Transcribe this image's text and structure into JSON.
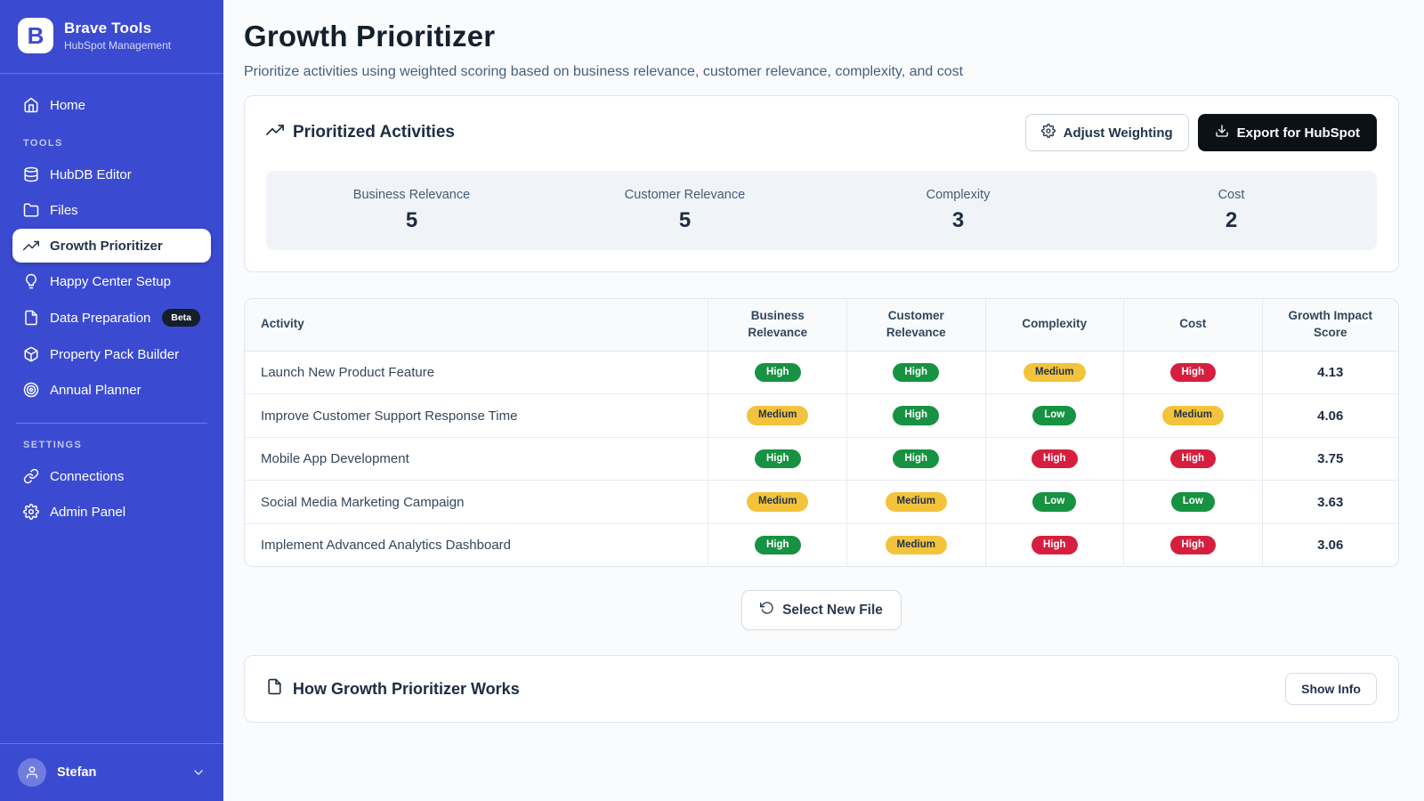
{
  "colors": {
    "sidebar-blue": "#3b4bd1",
    "badge-green": "#179242",
    "badge-yellow": "#f3c33c",
    "badge-red": "#d61f3e"
  },
  "sidebar": {
    "logo": {
      "monogram": "B",
      "title": "Brave Tools",
      "subtitle": "HubSpot Management"
    },
    "home": {
      "label": "Home"
    },
    "sections": [
      {
        "label": "TOOLS",
        "items": [
          {
            "label": "HubDB Editor"
          },
          {
            "label": "Files"
          },
          {
            "label": "Growth Prioritizer",
            "active": true
          },
          {
            "label": "Happy Center Setup"
          },
          {
            "label": "Data Preparation",
            "badge": "Beta"
          },
          {
            "label": "Property Pack Builder"
          },
          {
            "label": "Annual Planner"
          }
        ]
      },
      {
        "label": "SETTINGS",
        "items": [
          {
            "label": "Connections"
          },
          {
            "label": "Admin Panel"
          }
        ]
      }
    ],
    "user": {
      "name": "Stefan"
    }
  },
  "header": {
    "title": "Growth Prioritizer",
    "subtitle": "Prioritize activities using weighted scoring based on business relevance, customer relevance, complexity, and cost"
  },
  "prioritized": {
    "title": "Prioritized Activities",
    "adjust_weighting_label": "Adjust Weighting",
    "export_label": "Export for HubSpot",
    "weights": [
      {
        "label": "Business Relevance",
        "value": "5"
      },
      {
        "label": "Customer Relevance",
        "value": "5"
      },
      {
        "label": "Complexity",
        "value": "3"
      },
      {
        "label": "Cost",
        "value": "2"
      }
    ]
  },
  "table": {
    "columns": [
      "Activity",
      "Business Relevance",
      "Customer Relevance",
      "Complexity",
      "Cost",
      "Growth Impact Score"
    ],
    "rows": [
      {
        "activity": "Launch New Product Feature",
        "ratings": [
          {
            "label": "High",
            "color": "green"
          },
          {
            "label": "High",
            "color": "green"
          },
          {
            "label": "Medium",
            "color": "yellow"
          },
          {
            "label": "High",
            "color": "red"
          }
        ],
        "score": "4.13"
      },
      {
        "activity": "Improve Customer Support Response Time",
        "ratings": [
          {
            "label": "Medium",
            "color": "yellow"
          },
          {
            "label": "High",
            "color": "green"
          },
          {
            "label": "Low",
            "color": "green"
          },
          {
            "label": "Medium",
            "color": "yellow"
          }
        ],
        "score": "4.06"
      },
      {
        "activity": "Mobile App Development",
        "ratings": [
          {
            "label": "High",
            "color": "green"
          },
          {
            "label": "High",
            "color": "green"
          },
          {
            "label": "High",
            "color": "red"
          },
          {
            "label": "High",
            "color": "red"
          }
        ],
        "score": "3.75"
      },
      {
        "activity": "Social Media Marketing Campaign",
        "ratings": [
          {
            "label": "Medium",
            "color": "yellow"
          },
          {
            "label": "Medium",
            "color": "yellow"
          },
          {
            "label": "Low",
            "color": "green"
          },
          {
            "label": "Low",
            "color": "green"
          }
        ],
        "score": "3.63"
      },
      {
        "activity": "Implement Advanced Analytics Dashboard",
        "ratings": [
          {
            "label": "High",
            "color": "green"
          },
          {
            "label": "Medium",
            "color": "yellow"
          },
          {
            "label": "High",
            "color": "red"
          },
          {
            "label": "High",
            "color": "red"
          }
        ],
        "score": "3.06"
      }
    ]
  },
  "actions": {
    "select_new_file_label": "Select New File"
  },
  "info": {
    "title": "How Growth Prioritizer Works",
    "show_info_label": "Show Info"
  }
}
